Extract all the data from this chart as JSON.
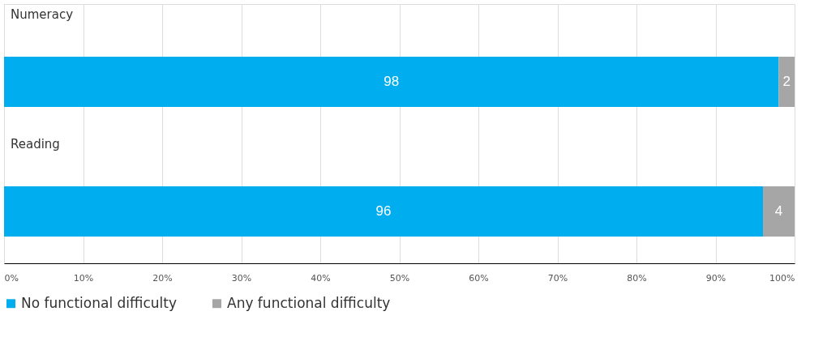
{
  "chart_data": {
    "type": "bar",
    "orientation": "horizontal",
    "stacked": true,
    "categories": [
      "Numeracy",
      "Reading"
    ],
    "series": [
      {
        "name": "No functional difficulty",
        "color": "#00aeef",
        "values": [
          98,
          96
        ]
      },
      {
        "name": "Any functional difficulty",
        "color": "#a6a6a6",
        "values": [
          2,
          4
        ]
      }
    ],
    "xlim": [
      0,
      100
    ],
    "xticks": [
      {
        "value": 0,
        "label": "0%"
      },
      {
        "value": 10,
        "label": "10%"
      },
      {
        "value": 20,
        "label": "20%"
      },
      {
        "value": 30,
        "label": "30%"
      },
      {
        "value": 40,
        "label": "40%"
      },
      {
        "value": 50,
        "label": "50%"
      },
      {
        "value": 60,
        "label": "60%"
      },
      {
        "value": 70,
        "label": "70%"
      },
      {
        "value": 80,
        "label": "80%"
      },
      {
        "value": 90,
        "label": "90%"
      },
      {
        "value": 100,
        "label": "100%"
      }
    ],
    "data_labels": true,
    "grid": "x",
    "legend": "bottom"
  }
}
